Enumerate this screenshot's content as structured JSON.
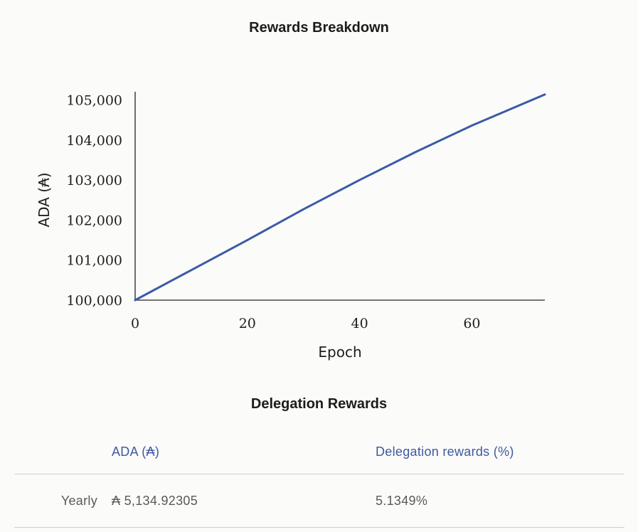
{
  "chart": {
    "title": "Rewards Breakdown"
  },
  "chart_data": {
    "type": "line",
    "title": "Rewards Breakdown",
    "xlabel": "Epoch",
    "ylabel": "ADA (₳)",
    "xlim": [
      0,
      73
    ],
    "ylim": [
      100000,
      105150
    ],
    "x_ticks": [
      0,
      20,
      40,
      60
    ],
    "y_ticks": [
      100000,
      101000,
      102000,
      103000,
      104000,
      105000
    ],
    "x_tick_labels": [
      "0",
      "20",
      "40",
      "60"
    ],
    "y_tick_labels": [
      "100,000",
      "101,000",
      "102,000",
      "103,000",
      "104,000",
      "105,000"
    ],
    "grid": false,
    "series": [
      {
        "color": "#3b5ba5",
        "x": [
          0,
          10,
          20,
          30,
          40,
          50,
          60,
          73
        ],
        "y": [
          100000,
          100750,
          101500,
          102270,
          103000,
          103700,
          104360,
          105135
        ]
      }
    ]
  },
  "table": {
    "title": "Delegation Rewards",
    "headers": {
      "ada": "ADA (₳)",
      "rewards": "Delegation rewards (%)"
    },
    "rows": [
      {
        "label": "Yearly",
        "ada": "₳ 5,134.92305",
        "rewards": "5.1349%"
      }
    ]
  }
}
